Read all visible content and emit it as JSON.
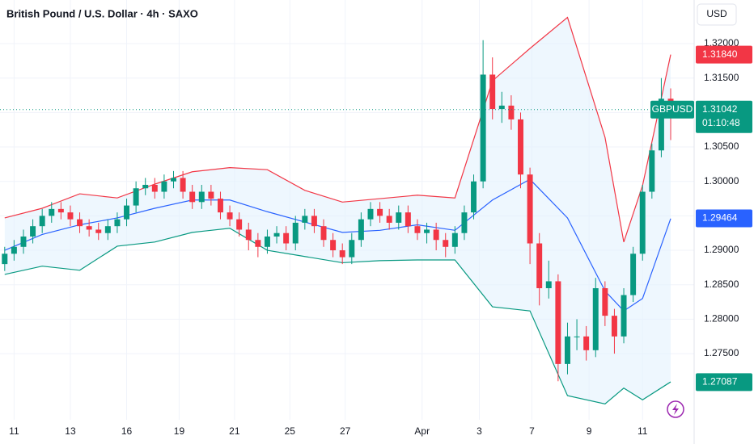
{
  "chart_data": {
    "type": "candlestick",
    "title": "British Pound / U.S. Dollar · 4h · SAXO",
    "currency": "USD",
    "x": [
      0,
      1,
      2,
      3,
      4,
      5,
      6,
      7,
      8,
      9,
      10,
      11,
      12,
      13,
      14,
      15,
      16,
      17,
      18,
      19,
      20,
      21,
      22,
      23,
      24,
      25,
      26,
      27,
      28,
      29,
      30,
      31,
      32,
      33,
      34,
      35,
      36,
      37,
      38,
      39,
      40,
      41,
      42,
      43,
      44,
      45,
      46,
      47,
      48,
      49,
      50,
      51,
      52,
      53,
      54,
      55,
      56,
      57,
      58,
      59,
      60,
      61,
      62,
      63,
      64,
      65,
      66,
      67,
      68,
      69,
      70,
      71
    ],
    "series": [
      {
        "name": "GBPUSD",
        "up_color": "#089981",
        "down_color": "#f23645",
        "open": [
          1.288,
          1.2895,
          1.2905,
          1.292,
          1.2935,
          1.295,
          1.296,
          1.2955,
          1.2945,
          1.2935,
          1.293,
          1.2925,
          1.2935,
          1.2945,
          1.2965,
          1.299,
          1.2995,
          1.2985,
          1.3,
          1.3005,
          1.2985,
          1.297,
          1.2985,
          1.2975,
          1.2955,
          1.2945,
          1.293,
          1.2915,
          1.2905,
          1.292,
          1.2925,
          1.291,
          1.294,
          1.295,
          1.2935,
          1.2915,
          1.29,
          1.289,
          1.2915,
          1.2945,
          1.296,
          1.295,
          1.294,
          1.2955,
          1.2935,
          1.2925,
          1.293,
          1.2915,
          1.2905,
          1.2925,
          1.2955,
          1.3,
          1.3155,
          1.3105,
          1.311,
          1.309,
          1.301,
          1.291,
          1.2845,
          1.2855,
          1.2735,
          1.2775,
          1.2775,
          1.2755,
          1.2845,
          1.2805,
          1.2775,
          1.2835,
          1.2895,
          1.2985,
          1.3045,
          1.312
        ],
        "high": [
          1.2905,
          1.2915,
          1.293,
          1.2945,
          1.296,
          1.297,
          1.297,
          1.2965,
          1.2955,
          1.2945,
          1.294,
          1.2945,
          1.2955,
          1.2975,
          1.3,
          1.3005,
          1.3005,
          1.301,
          1.3015,
          1.3015,
          1.2995,
          1.2995,
          1.2995,
          1.2985,
          1.2965,
          1.2955,
          1.294,
          1.2925,
          1.293,
          1.2935,
          1.2935,
          1.295,
          1.296,
          1.296,
          1.2945,
          1.2925,
          1.291,
          1.2925,
          1.2955,
          1.297,
          1.297,
          1.296,
          1.2965,
          1.2965,
          1.2945,
          1.294,
          1.294,
          1.2925,
          1.2935,
          1.2965,
          1.301,
          1.3205,
          1.318,
          1.313,
          1.3125,
          1.31,
          1.302,
          1.2925,
          1.2885,
          1.2865,
          1.2795,
          1.28,
          1.279,
          1.286,
          1.2855,
          1.2815,
          1.2845,
          1.2905,
          1.2995,
          1.3055,
          1.315,
          1.3135
        ],
        "low": [
          1.287,
          1.2885,
          1.2895,
          1.291,
          1.2925,
          1.294,
          1.2945,
          1.2935,
          1.2925,
          1.292,
          1.2915,
          1.2915,
          1.2925,
          1.2935,
          1.2955,
          1.298,
          1.2975,
          1.2975,
          1.299,
          1.2975,
          1.296,
          1.296,
          1.2965,
          1.2945,
          1.2935,
          1.292,
          1.29,
          1.289,
          1.2895,
          1.291,
          1.29,
          1.29,
          1.293,
          1.2925,
          1.2905,
          1.289,
          1.288,
          1.288,
          1.2905,
          1.2935,
          1.294,
          1.293,
          1.293,
          1.2925,
          1.2915,
          1.291,
          1.29,
          1.289,
          1.2895,
          1.2915,
          1.2945,
          1.299,
          1.309,
          1.3085,
          1.3075,
          1.299,
          1.288,
          1.282,
          1.283,
          1.271,
          1.272,
          1.2755,
          1.274,
          1.2745,
          1.279,
          1.275,
          1.2765,
          1.2825,
          1.2885,
          1.2975,
          1.3035,
          1.306
        ],
        "close": [
          1.2895,
          1.2905,
          1.292,
          1.2935,
          1.295,
          1.296,
          1.2955,
          1.2945,
          1.2935,
          1.293,
          1.2925,
          1.2935,
          1.2945,
          1.2965,
          1.299,
          1.2995,
          1.2985,
          1.3,
          1.3005,
          1.2985,
          1.297,
          1.2985,
          1.2975,
          1.2955,
          1.2945,
          1.293,
          1.2915,
          1.2905,
          1.292,
          1.2925,
          1.291,
          1.294,
          1.295,
          1.2935,
          1.2915,
          1.29,
          1.289,
          1.2915,
          1.2945,
          1.296,
          1.295,
          1.294,
          1.2955,
          1.2935,
          1.2925,
          1.293,
          1.2915,
          1.2905,
          1.2925,
          1.2955,
          1.3,
          1.3155,
          1.3105,
          1.311,
          1.309,
          1.301,
          1.291,
          1.2845,
          1.2855,
          1.2735,
          1.2775,
          1.2775,
          1.2755,
          1.2845,
          1.2805,
          1.2775,
          1.2835,
          1.2895,
          1.2985,
          1.3045,
          1.312,
          1.3104
        ]
      }
    ],
    "bands": {
      "x": [
        0,
        4,
        8,
        12,
        16,
        20,
        24,
        28,
        32,
        36,
        40,
        44,
        48,
        52,
        56,
        60,
        64,
        66,
        68,
        71
      ],
      "fill_color": "#e3f2fd",
      "lines": [
        {
          "color": "#f23645",
          "values": [
            1.2947,
            1.2961,
            1.2982,
            1.2976,
            1.2996,
            1.3014,
            1.302,
            1.3017,
            1.2987,
            1.297,
            1.2975,
            1.298,
            1.2976,
            1.3146,
            1.3193,
            1.3238,
            1.3064,
            1.2912,
            1.2994,
            1.3184
          ]
        },
        {
          "color": "#2962ff",
          "values": [
            1.29,
            1.2923,
            1.2937,
            1.2947,
            1.2961,
            1.2973,
            1.2973,
            1.2956,
            1.2941,
            1.2926,
            1.2929,
            1.2937,
            1.2929,
            1.2973,
            1.3003,
            1.2947,
            1.2841,
            1.2812,
            1.283,
            1.2946
          ]
        },
        {
          "color": "#089981",
          "values": [
            1.2865,
            1.2877,
            1.2871,
            1.2906,
            1.2912,
            1.2926,
            1.2932,
            1.29,
            1.2891,
            1.2882,
            1.2885,
            1.2886,
            1.2886,
            1.2818,
            1.2812,
            1.2689,
            1.2677,
            1.27,
            1.2683,
            1.2709
          ]
        }
      ]
    },
    "xlim": [
      -0.5,
      73.5
    ],
    "xticks": [
      {
        "value": 1,
        "label": "11"
      },
      {
        "value": 7,
        "label": "13"
      },
      {
        "value": 13,
        "label": "16"
      },
      {
        "value": 18.6,
        "label": "19"
      },
      {
        "value": 24.5,
        "label": "21"
      },
      {
        "value": 30.4,
        "label": "25"
      },
      {
        "value": 36.3,
        "label": "27"
      },
      {
        "value": 44.5,
        "label": "Apr"
      },
      {
        "value": 50.6,
        "label": "3"
      },
      {
        "value": 56.2,
        "label": "7"
      },
      {
        "value": 62.3,
        "label": "9"
      },
      {
        "value": 68,
        "label": "11"
      }
    ],
    "ylim": [
      1.2654,
      1.32633
    ],
    "yticks": [
      {
        "value": 1.275,
        "label": "1.27500"
      },
      {
        "value": 1.28,
        "label": "1.28000"
      },
      {
        "value": 1.285,
        "label": "1.28500"
      },
      {
        "value": 1.29,
        "label": "1.29000"
      },
      {
        "value": 1.295,
        "label": "1.29500"
      },
      {
        "value": 1.3,
        "label": "1.30000"
      },
      {
        "value": 1.305,
        "label": "1.30500"
      },
      {
        "value": 1.31,
        "label": "1.31000"
      },
      {
        "value": 1.315,
        "label": "1.31500"
      },
      {
        "value": 1.32,
        "label": "1.32000"
      }
    ],
    "grid": true,
    "price_labels": [
      {
        "value": 1.3184,
        "label": "1.31840",
        "color": "#f23645"
      },
      {
        "value": 1.29464,
        "label": "1.29464",
        "color": "#2962ff"
      },
      {
        "value": 1.27087,
        "label": "1.27087",
        "color": "#089981"
      },
      {
        "value": 1.31042,
        "label": "1.31042",
        "color": "#089981",
        "symbol": "GBPUSD",
        "countdown": "01:10:48"
      }
    ]
  }
}
